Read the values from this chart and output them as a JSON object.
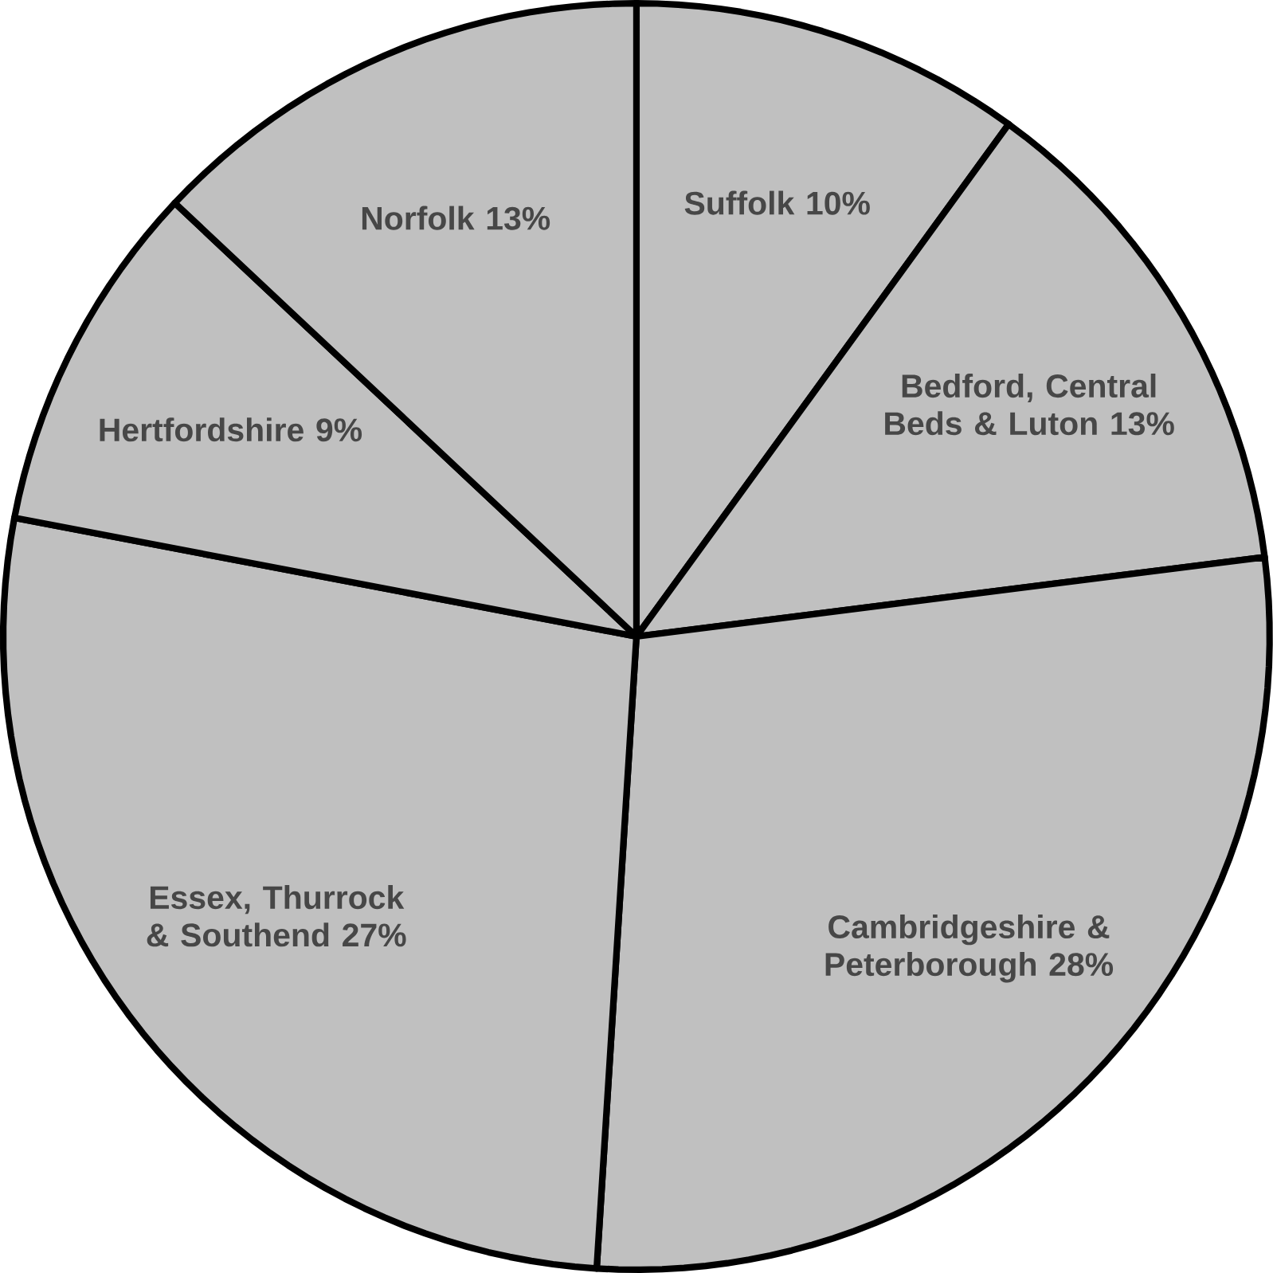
{
  "chart_data": {
    "type": "pie",
    "categories": [
      "Suffolk",
      "Bedford, Central Beds & Luton",
      "Cambridgeshire & Peterborough",
      "Essex, Thurrock & Southend",
      "Hertfordshire",
      "Norfolk"
    ],
    "values": [
      10,
      13,
      28,
      27,
      9,
      13
    ],
    "value_labels": [
      "10%",
      "13%",
      "28%",
      "27%",
      "9%",
      "13%"
    ],
    "colors": [
      "#c0c0c0",
      "#c0c0c0",
      "#c0c0c0",
      "#c0c0c0",
      "#c0c0c0",
      "#c0c0c0"
    ]
  }
}
